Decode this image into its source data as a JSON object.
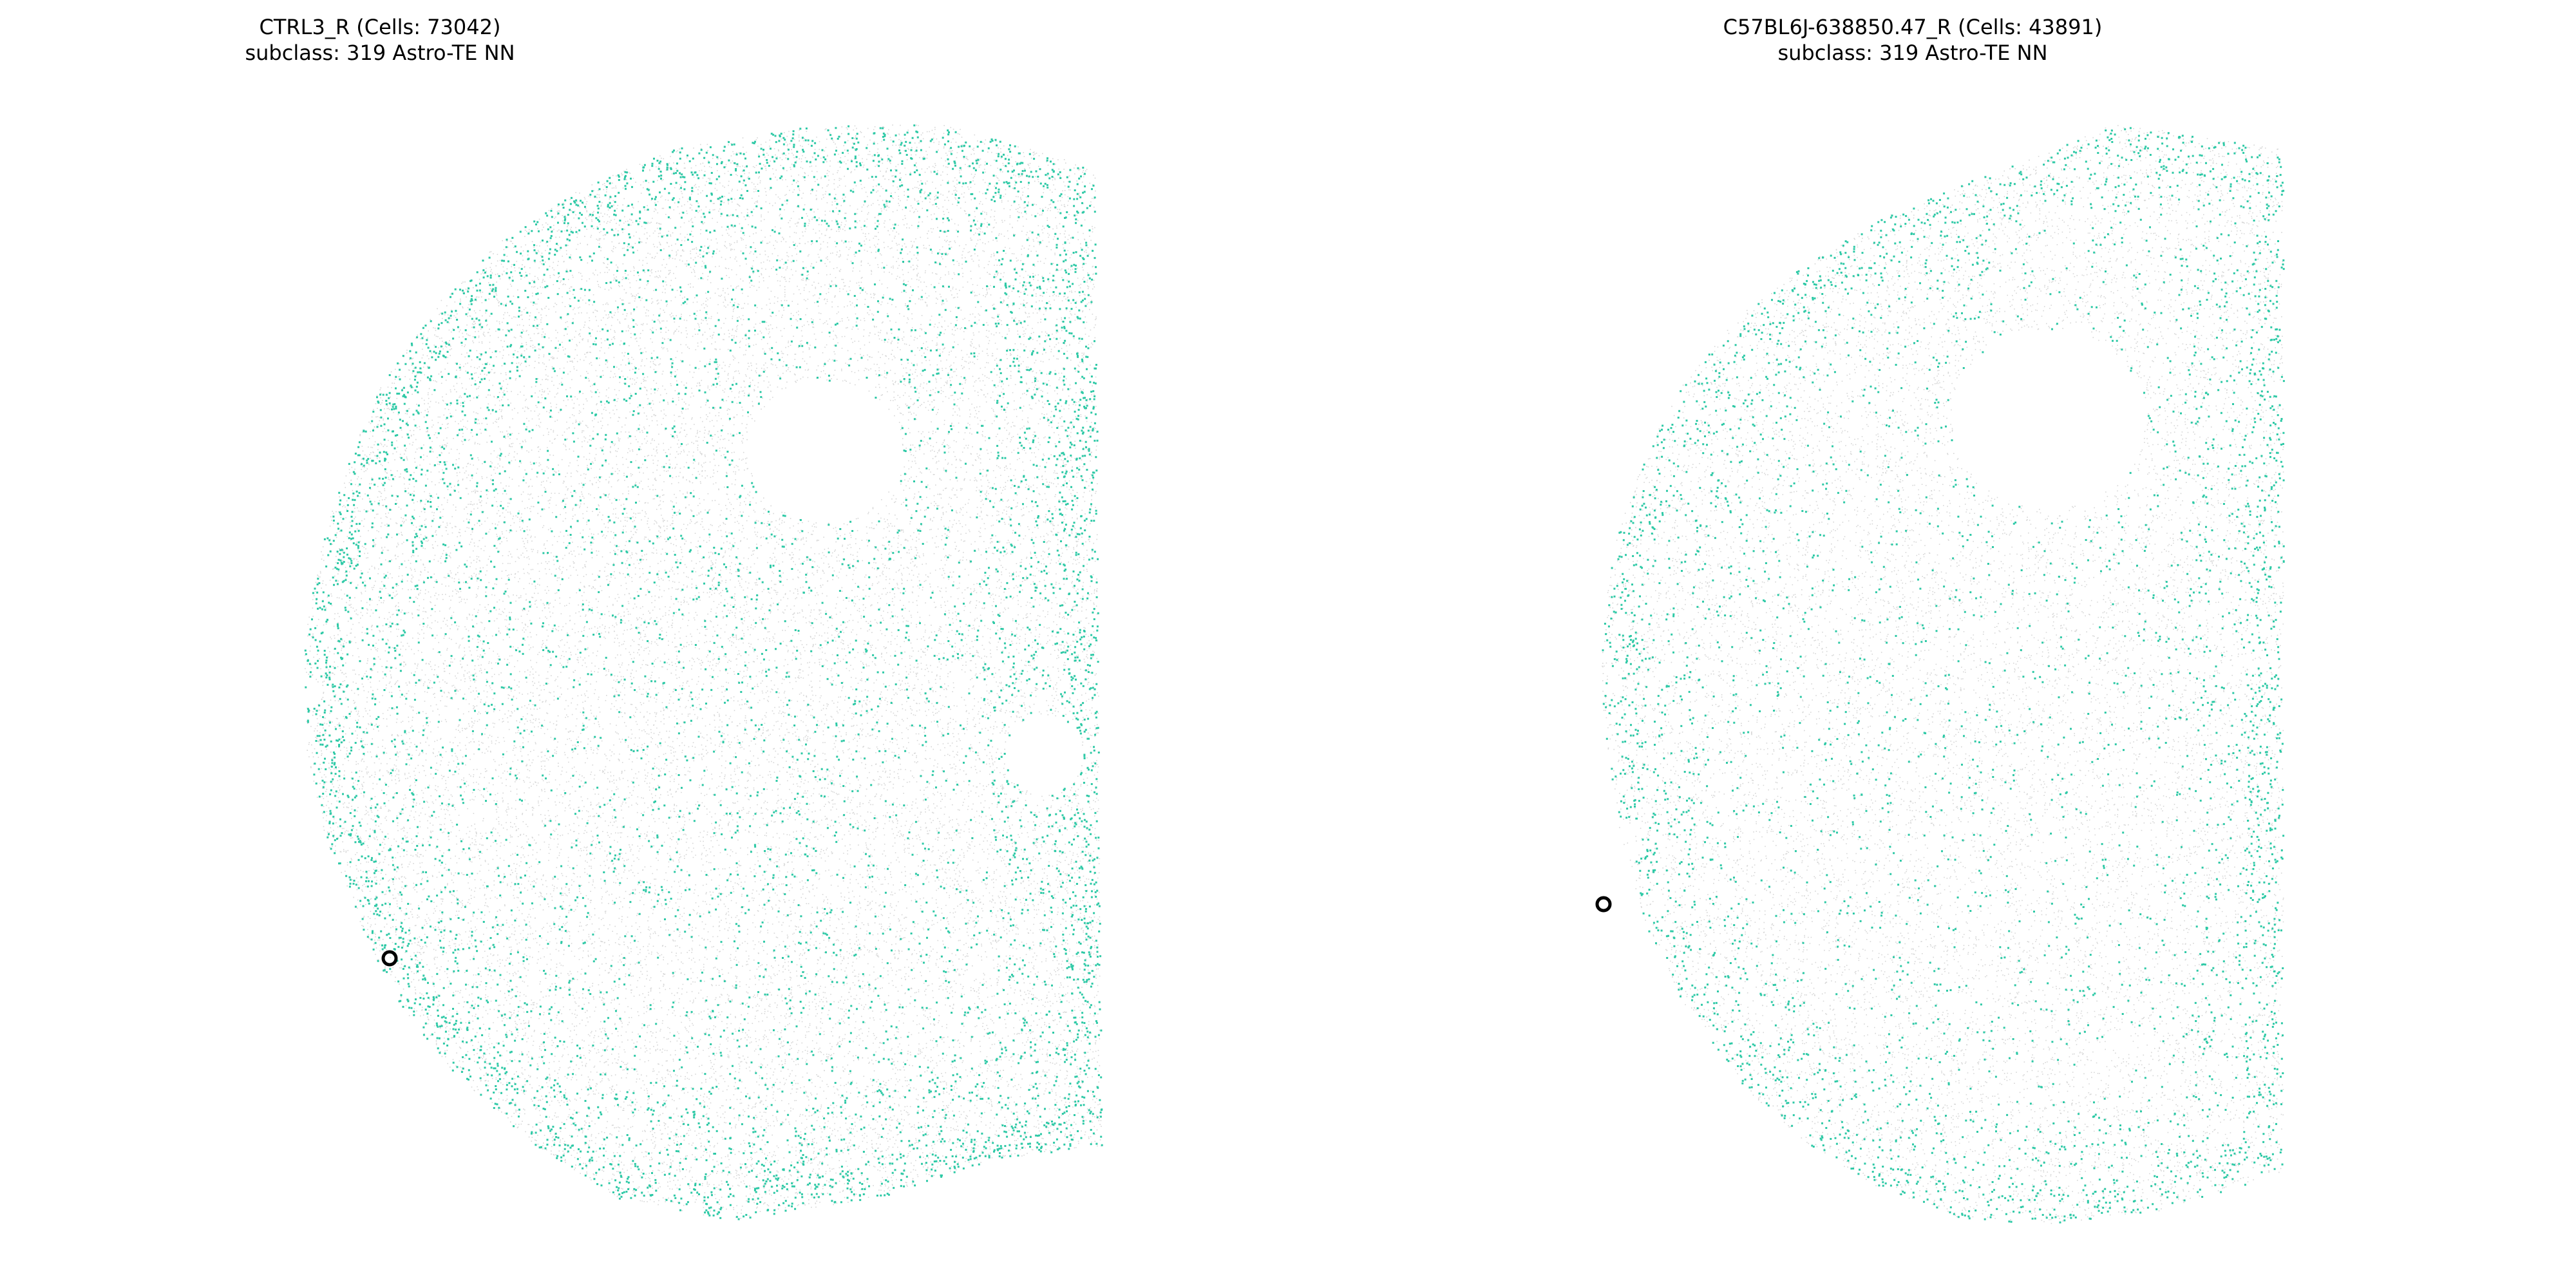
{
  "colors": {
    "background": "#ffffff",
    "title_text": "#000000",
    "other_cells": "#c8c8c8",
    "highlight_cells": "#2ec9a6",
    "marker_ring": "#000000"
  },
  "chart_data": [
    {
      "type": "scatter",
      "title": "CTRL3_R (Cells: 73042)",
      "subtitle": "subclass: 319 Astro-TE NN",
      "xlabel": "",
      "ylabel": "",
      "axes_visible": false,
      "grid": false,
      "legend": "none",
      "cell_count": 73042,
      "highlighted_subclass": "319 Astro-TE NN",
      "series": [
        {
          "role": "all-cells",
          "color": "#c8c8c8"
        },
        {
          "role": "subclass-cells",
          "color": "#2ec9a6"
        }
      ],
      "marker": {
        "style": "open-circle",
        "color": "#000000"
      }
    },
    {
      "type": "scatter",
      "title": "C57BL6J-638850.47_R (Cells: 43891)",
      "subtitle": "subclass: 319 Astro-TE NN",
      "xlabel": "",
      "ylabel": "",
      "axes_visible": false,
      "grid": false,
      "legend": "none",
      "cell_count": 43891,
      "highlighted_subclass": "319 Astro-TE NN",
      "series": [
        {
          "role": "all-cells",
          "color": "#c8c8c8"
        },
        {
          "role": "subclass-cells",
          "color": "#2ec9a6"
        }
      ],
      "marker": {
        "style": "open-circle",
        "color": "#000000"
      }
    }
  ]
}
